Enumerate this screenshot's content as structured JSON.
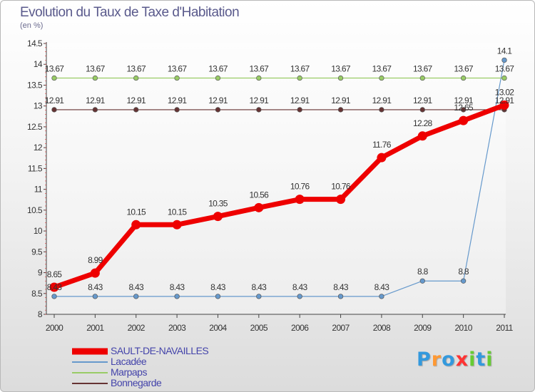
{
  "header": {
    "title": "Evolution du Taux de Taxe d'Habitation",
    "subtitle": "(en %)"
  },
  "colors": {
    "sault": "#ee0000",
    "lacadee": "#6699cc",
    "marpaps": "#99cc66",
    "bonnegarde": "#663333",
    "axis": "#444444",
    "text": "#333333"
  },
  "chart_data": {
    "type": "line",
    "title": "Evolution du Taux de Taxe d'Habitation",
    "ylabel": "(en %)",
    "xlabel": "",
    "x": [
      "2000",
      "2001",
      "2002",
      "2003",
      "2004",
      "2005",
      "2006",
      "2007",
      "2008",
      "2009",
      "2010",
      "2011"
    ],
    "ylim": [
      8,
      14.5
    ],
    "yticks": [
      "8",
      "8.5",
      "9",
      "9.5",
      "10",
      "10.5",
      "11",
      "11.5",
      "12",
      "12.5",
      "13",
      "13.5",
      "14",
      "14.5"
    ],
    "series": [
      {
        "name": "SAULT-DE-NAVAILLES",
        "color": "#ee0000",
        "labels": [
          "8.65",
          "8.99",
          "10.15",
          "10.15",
          "10.35",
          "10.56",
          "10.76",
          "10.76",
          "11.76",
          "12.28",
          "12.65",
          "13.02"
        ],
        "values": [
          8.65,
          8.99,
          10.15,
          10.15,
          10.35,
          10.56,
          10.76,
          10.76,
          11.76,
          12.28,
          12.65,
          13.02
        ]
      },
      {
        "name": "Lacadée",
        "color": "#6699cc",
        "labels": [
          "8.43",
          "8.43",
          "8.43",
          "8.43",
          "8.43",
          "8.43",
          "8.43",
          "8.43",
          "8.43",
          "8.8",
          "8.8",
          "14.1"
        ],
        "values": [
          8.43,
          8.43,
          8.43,
          8.43,
          8.43,
          8.43,
          8.43,
          8.43,
          8.43,
          8.8,
          8.8,
          14.1
        ]
      },
      {
        "name": "Marpaps",
        "color": "#99cc66",
        "labels": [
          "13.67",
          "13.67",
          "13.67",
          "13.67",
          "13.67",
          "13.67",
          "13.67",
          "13.67",
          "13.67",
          "13.67",
          "13.67",
          "13.67"
        ],
        "values": [
          13.67,
          13.67,
          13.67,
          13.67,
          13.67,
          13.67,
          13.67,
          13.67,
          13.67,
          13.67,
          13.67,
          13.67
        ]
      },
      {
        "name": "Bonnegarde",
        "color": "#663333",
        "labels": [
          "12.91",
          "12.91",
          "12.91",
          "12.91",
          "12.91",
          "12.91",
          "12.91",
          "12.91",
          "12.91",
          "12.91",
          "12.91",
          "12.91"
        ],
        "values": [
          12.91,
          12.91,
          12.91,
          12.91,
          12.91,
          12.91,
          12.91,
          12.91,
          12.91,
          12.91,
          12.91,
          12.91
        ]
      }
    ]
  },
  "legend": {
    "items": [
      {
        "label": "SAULT-DE-NAVAILLES",
        "color": "#ee0000"
      },
      {
        "label": "Lacadée",
        "color": "#6699cc"
      },
      {
        "label": "Marpaps",
        "color": "#99cc66"
      },
      {
        "label": "Bonnegarde",
        "color": "#663333"
      }
    ]
  },
  "logo": {
    "letters": [
      "P",
      "r",
      "o",
      "x",
      "i",
      "t",
      "i"
    ],
    "colors": [
      "#3399dd",
      "#ff9933",
      "#3399dd",
      "#ff3333",
      "#66cc33",
      "#3399dd",
      "#66cc33"
    ]
  }
}
